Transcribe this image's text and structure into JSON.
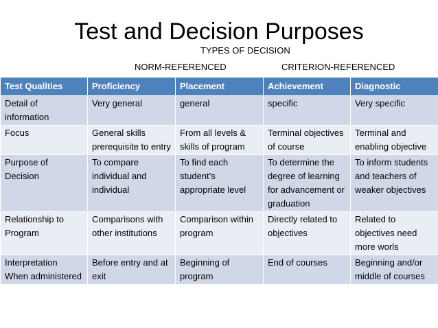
{
  "title": "Test and Decision Purposes",
  "types_label": "TYPES OF DECISION",
  "norm_label": "NORM-REFERENCED",
  "criterion_label": "CRITERION-REFERENCED",
  "table": {
    "headers": [
      "Test Qualities",
      "Proficiency",
      "Placement",
      "Achievement",
      "Diagnostic"
    ],
    "rows": [
      [
        "Detail of information",
        "Very general",
        "general",
        "specific",
        "Very specific"
      ],
      [
        "Focus",
        "General skills prerequisite to entry",
        "From all levels & skills of program",
        "Terminal objectives of course",
        "Terminal and enabling objective"
      ],
      [
        "Purpose of Decision",
        "To compare individual and individual",
        "To find each student’s appropriate level",
        "To determine the degree of learning for advancement or graduation",
        "To inform students and teachers of weaker objectives"
      ],
      [
        "Relationship to Program",
        "Comparisons with other institutions",
        "Comparison within program",
        "Directly related to objectives",
        "Related to objectives need more worls"
      ],
      [
        "Interpretation When administered",
        "Before entry and at exit",
        "Beginning of program",
        "End of courses",
        "Beginning and/or middle of courses"
      ]
    ]
  },
  "colors": {
    "header": "#4f81bd",
    "row_dark": "#d0d8e8",
    "row_light": "#e9edf4"
  }
}
